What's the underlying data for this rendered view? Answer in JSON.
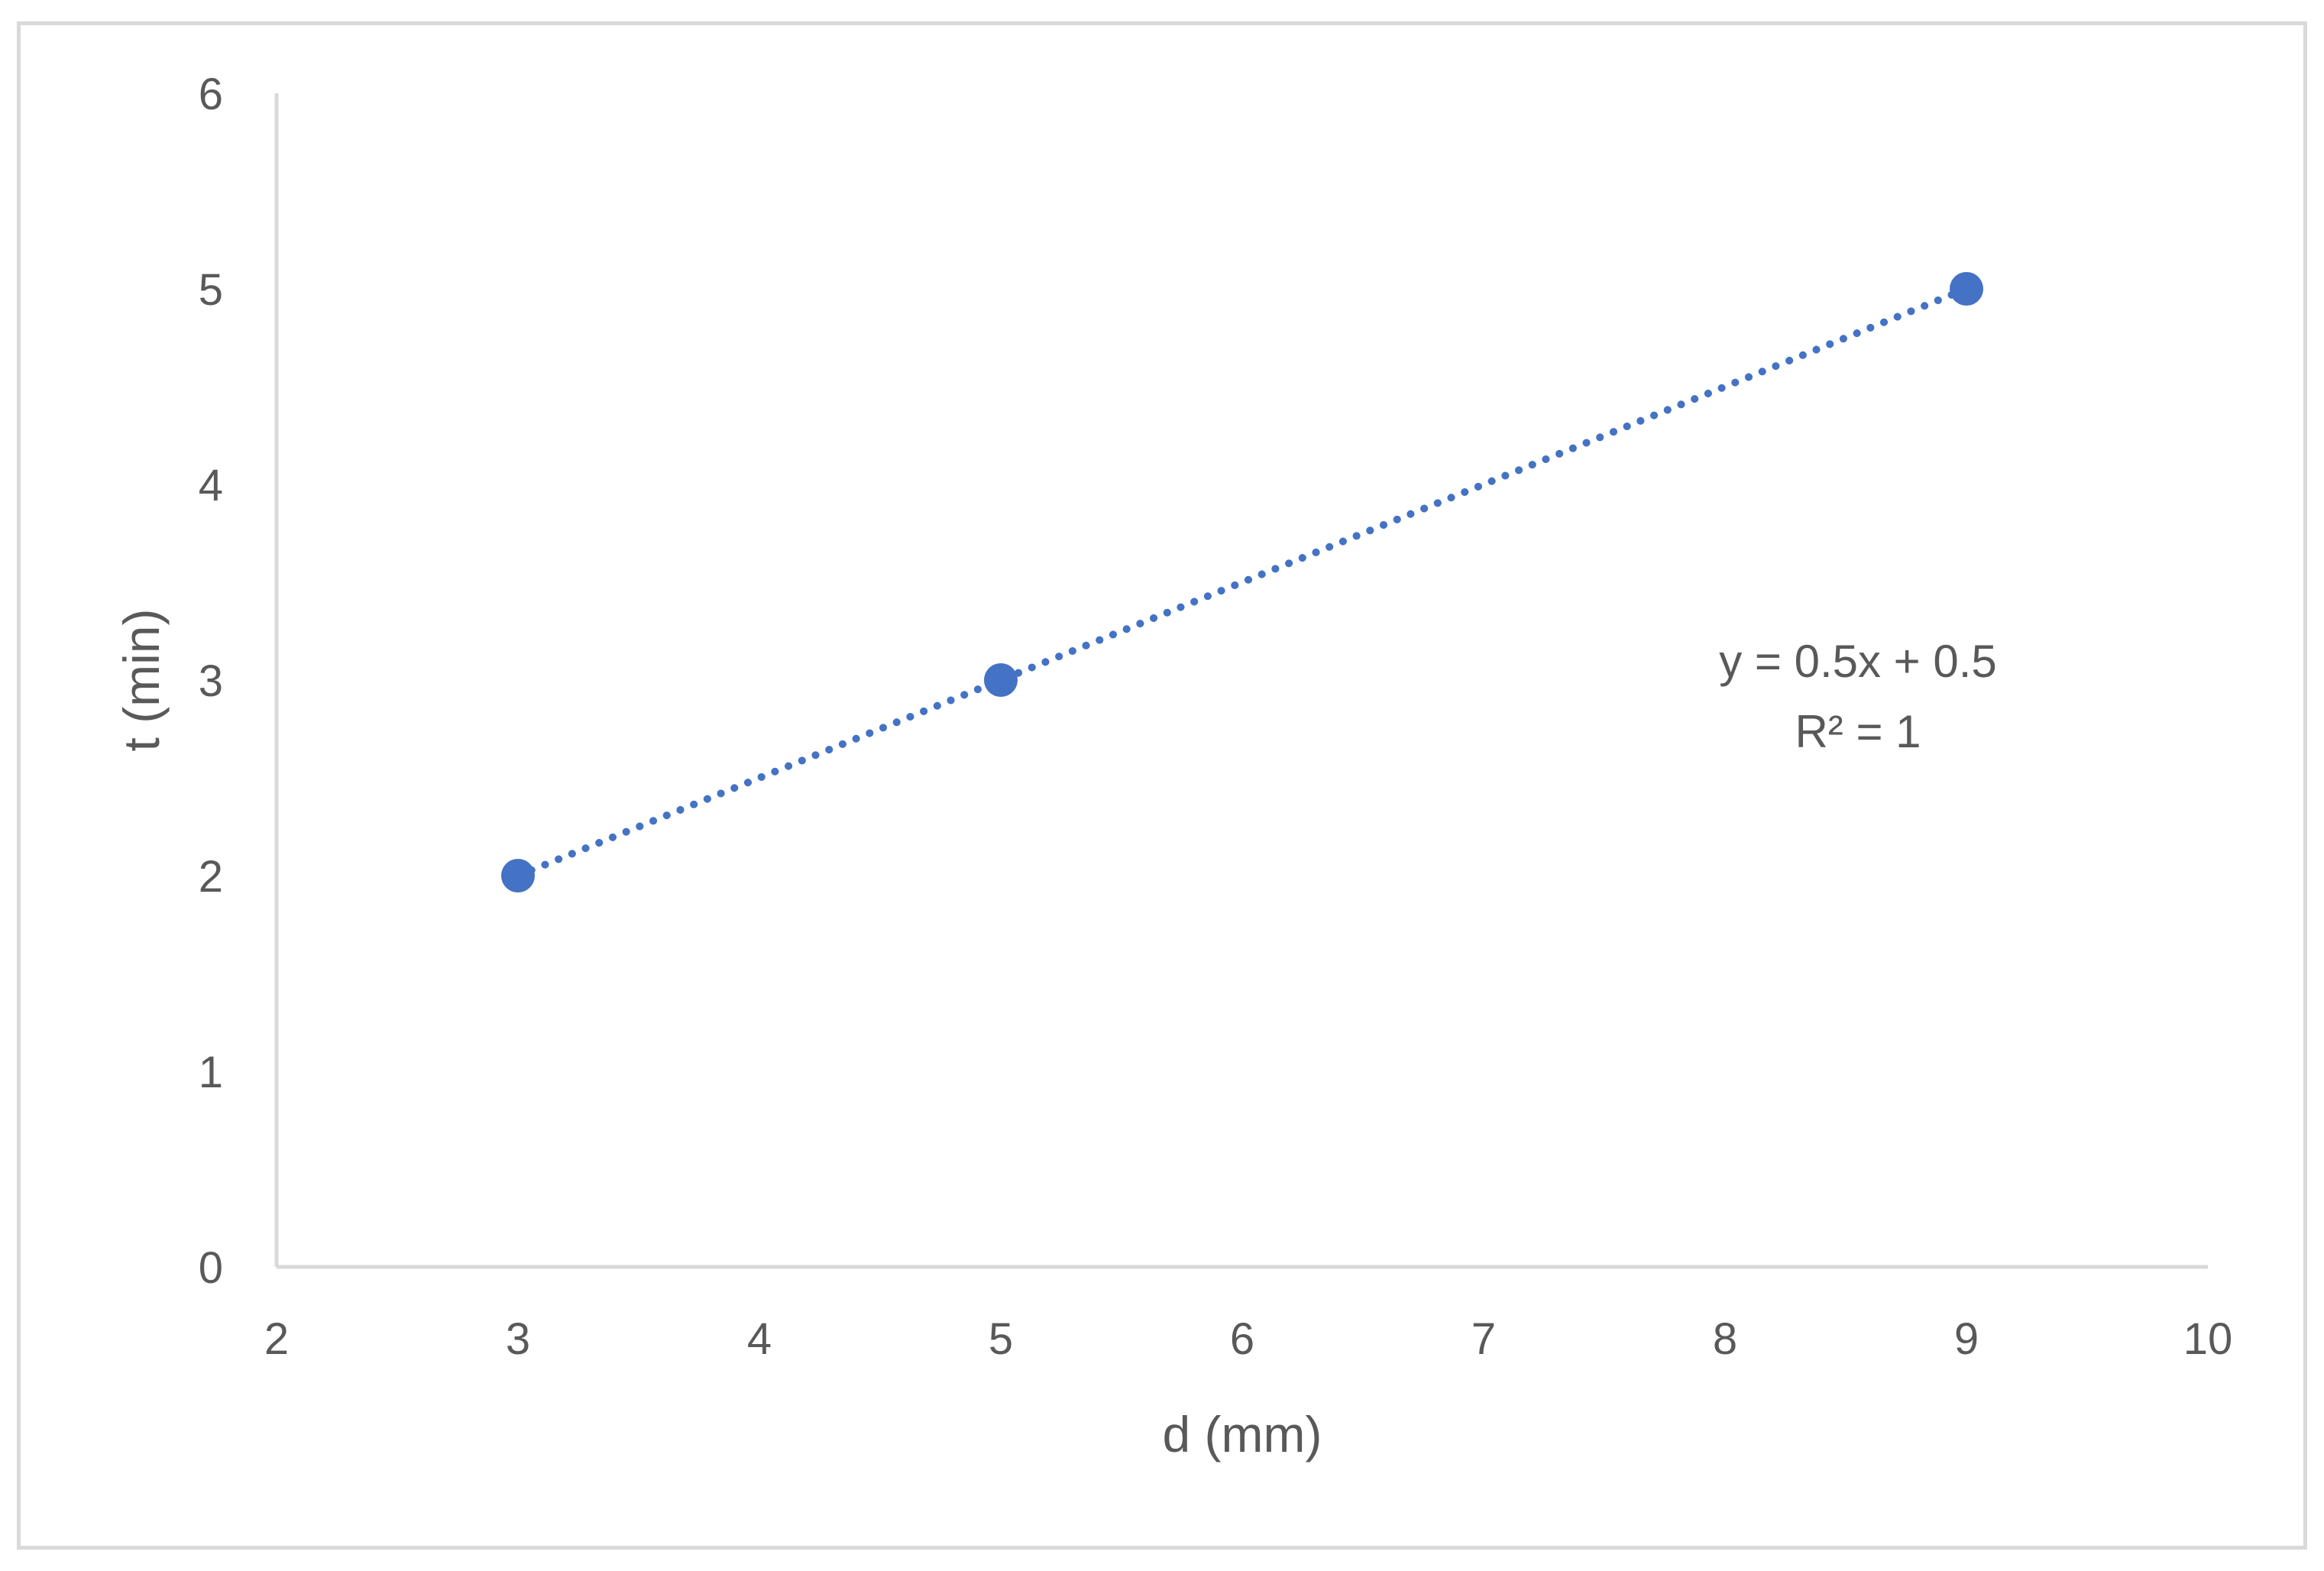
{
  "chart_data": {
    "type": "scatter",
    "title": "",
    "xlabel": "d (mm)",
    "ylabel": "t (min)",
    "xlim": [
      2,
      10
    ],
    "ylim": [
      0,
      6
    ],
    "x_ticks": [
      2,
      3,
      4,
      5,
      6,
      7,
      8,
      9,
      10
    ],
    "y_ticks": [
      0,
      1,
      2,
      3,
      4,
      5,
      6
    ],
    "grid": false,
    "legend": "none",
    "series": [
      {
        "color": "#4472c4",
        "points": [
          {
            "x": 3,
            "y": 2
          },
          {
            "x": 5,
            "y": 3
          },
          {
            "x": 9,
            "y": 5
          }
        ]
      }
    ],
    "trendline": {
      "type": "linear",
      "style": "dotted",
      "color": "#4472c4",
      "slope": 0.5,
      "intercept": 0.5,
      "x_range": [
        3,
        9
      ]
    },
    "annotations": {
      "equation": "y = 0.5x + 0.5",
      "r_squared": "R² = 1"
    },
    "axis_color": "#d9d9d9",
    "text_color": "#595959"
  }
}
